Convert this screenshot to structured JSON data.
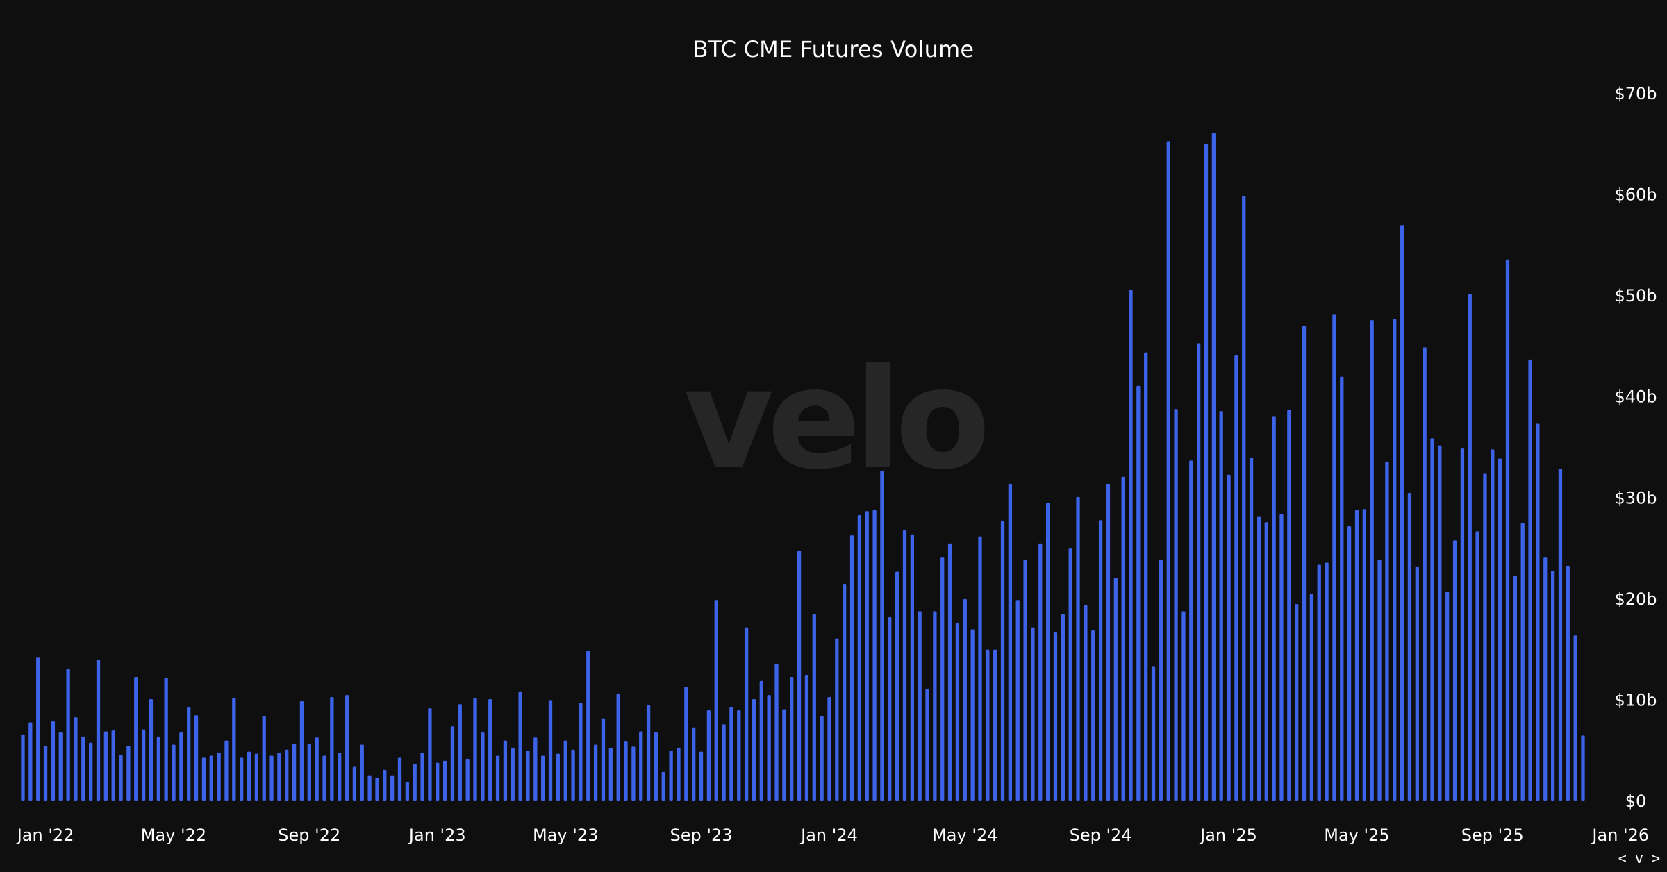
{
  "watermark": "velo",
  "nav_hint": "< v >",
  "chart_data": {
    "type": "bar",
    "title": "BTC CME Futures Volume",
    "xlabel": "",
    "ylabel": "",
    "y_axis_position": "right",
    "ylim": [
      0,
      70
    ],
    "y_ticks": [
      0,
      10,
      20,
      30,
      40,
      50,
      60,
      70
    ],
    "y_tick_labels": [
      "$0",
      "$10b",
      "$20b",
      "$30b",
      "$40b",
      "$50b",
      "$60b",
      "$70b"
    ],
    "x_tick_labels": [
      "Jan '22",
      "May '22",
      "Sep '22",
      "Jan '23",
      "May '23",
      "Sep '23",
      "Jan '24",
      "May '24",
      "Sep '24",
      "Jan '25",
      "May '25",
      "Sep '25",
      "Jan '26"
    ],
    "x_tick_bar_index": [
      3,
      20,
      38,
      55,
      72,
      90,
      107,
      125,
      143,
      160,
      177,
      195,
      212
    ],
    "bar_unit": "weekly",
    "value_unit": "USD billions",
    "grid": false,
    "legend": "none",
    "colors": {
      "bar": "#3d63e8",
      "background": "#0f0f0f",
      "text": "#ffffff",
      "watermark": "#262626"
    },
    "values": [
      6.6,
      7.8,
      14.2,
      5.5,
      7.9,
      6.8,
      13.1,
      8.3,
      6.4,
      5.8,
      14.0,
      6.9,
      7.0,
      4.6,
      5.5,
      12.3,
      7.1,
      10.1,
      6.4,
      12.2,
      5.6,
      6.8,
      9.3,
      8.5,
      4.3,
      4.5,
      4.8,
      6.0,
      10.2,
      4.3,
      4.9,
      4.7,
      8.4,
      4.5,
      4.8,
      5.1,
      5.7,
      9.9,
      5.7,
      6.3,
      4.5,
      10.3,
      4.8,
      10.5,
      3.4,
      5.6,
      2.5,
      2.3,
      3.1,
      2.5,
      4.3,
      1.9,
      3.7,
      4.8,
      9.2,
      3.8,
      4.0,
      7.4,
      9.6,
      4.2,
      10.2,
      6.8,
      10.1,
      4.5,
      6.0,
      5.3,
      10.8,
      5.0,
      6.3,
      4.5,
      10.0,
      4.7,
      6.0,
      5.1,
      9.7,
      14.9,
      5.6,
      8.2,
      5.3,
      10.6,
      5.9,
      5.4,
      6.9,
      9.5,
      6.8,
      2.9,
      5.0,
      5.3,
      11.3,
      7.3,
      4.9,
      9.0,
      19.9,
      7.6,
      9.3,
      9.0,
      17.2,
      10.1,
      11.9,
      10.5,
      13.6,
      9.1,
      12.3,
      24.8,
      12.5,
      18.5,
      8.4,
      10.3,
      16.1,
      21.5,
      26.3,
      28.3,
      28.7,
      28.8,
      32.7,
      18.2,
      22.7,
      26.8,
      26.4,
      18.8,
      11.1,
      18.8,
      24.1,
      25.5,
      17.6,
      20.0,
      17.0,
      26.2,
      15.0,
      15.0,
      27.7,
      31.4,
      19.9,
      23.9,
      17.2,
      25.5,
      29.5,
      16.7,
      18.5,
      25.0,
      30.1,
      19.4,
      16.9,
      27.8,
      31.4,
      22.1,
      32.1,
      50.6,
      41.1,
      44.4,
      13.3,
      23.9,
      65.3,
      38.8,
      18.8,
      33.7,
      45.3,
      65.0,
      66.1,
      38.6,
      32.3,
      44.1,
      59.9,
      34.0,
      28.2,
      27.6,
      38.1,
      28.4,
      38.7,
      19.5,
      47.0,
      20.5,
      23.4,
      23.6,
      48.2,
      42.0,
      27.2,
      28.8,
      28.9,
      47.6,
      23.9,
      33.6,
      47.7,
      57.0,
      30.5,
      23.2,
      44.9,
      35.9,
      35.2,
      20.7,
      25.8,
      34.9,
      50.2,
      26.7,
      32.4,
      34.8,
      33.9,
      53.6,
      22.3,
      27.5,
      43.7,
      37.4,
      24.1,
      22.8,
      32.9,
      23.3,
      16.4,
      6.5
    ]
  }
}
